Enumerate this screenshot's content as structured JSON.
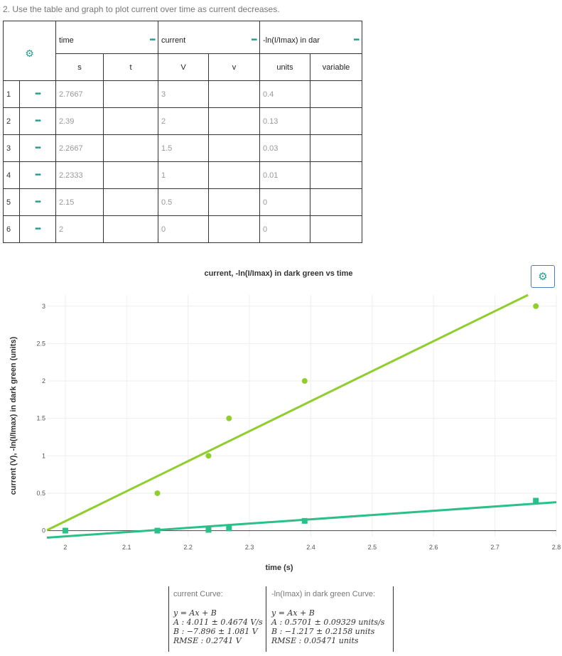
{
  "instructions": "2. Use the table and graph to plot current over time as current decreases.",
  "table": {
    "columns": [
      {
        "name": "time",
        "units": "s",
        "variable": "t"
      },
      {
        "name": "current",
        "units": "V",
        "variable": "v"
      },
      {
        "name": "-ln(I/Imax) in dar",
        "units": "units",
        "variable": "variable"
      }
    ],
    "rows": [
      {
        "num": "1",
        "time": "2.7667",
        "current": "3",
        "ln": "0.4"
      },
      {
        "num": "2",
        "time": "2.39",
        "current": "2",
        "ln": "0.13"
      },
      {
        "num": "3",
        "time": "2.2667",
        "current": "1.5",
        "ln": "0.03"
      },
      {
        "num": "4",
        "time": "2.2333",
        "current": "1",
        "ln": "0.01"
      },
      {
        "num": "5",
        "time": "2.15",
        "current": "0.5",
        "ln": "0"
      },
      {
        "num": "6",
        "time": "2",
        "current": "0",
        "ln": "0"
      }
    ],
    "header_dots": "•••",
    "row_dots": "•••"
  },
  "chart_data": {
    "type": "scatter",
    "title": "current, -ln(I/Imax) in dark green vs time",
    "xlabel": "time (s)",
    "ylabel": "current (V), -ln(I/Imax) in dark green (units)",
    "xlim": [
      1.97,
      2.8
    ],
    "ylim": [
      -0.08,
      3.15
    ],
    "xticks": [
      "2",
      "2.1",
      "2.2",
      "2.3",
      "2.4",
      "2.5",
      "2.6",
      "2.7",
      "2.8"
    ],
    "yticks": [
      "0",
      "0.5",
      "1",
      "1.5",
      "2",
      "2.5",
      "3"
    ],
    "grid": true,
    "series": [
      {
        "color": "#8fce2c",
        "marker": "circle",
        "x": [
          2.7667,
          2.39,
          2.2667,
          2.2333,
          2.15,
          2.0
        ],
        "y": [
          3,
          2,
          1.5,
          1,
          0.5,
          0
        ],
        "fit": {
          "A": 4.011,
          "B": -7.896
        }
      },
      {
        "color": "#2bbf8a",
        "marker": "square",
        "x": [
          2.7667,
          2.39,
          2.2667,
          2.2333,
          2.15,
          2.0
        ],
        "y": [
          0.4,
          0.13,
          0.03,
          0.01,
          0,
          0
        ],
        "fit": {
          "A": 0.5701,
          "B": -1.217
        }
      }
    ]
  },
  "fits": {
    "left": {
      "title": "current Curve:",
      "eq": "y = Ax + B",
      "a": "A : 4.011 ± 0.4674 V/s",
      "b": "B : −7.896 ± 1.081 V",
      "rmse": "RMSE : 0.2741 V"
    },
    "right": {
      "title": "-ln(Imax) in dark green Curve:",
      "eq": "y = Ax + B",
      "a": "A : 0.5701 ± 0.09329 units/s",
      "b": "B : −1.217 ± 0.2158 units",
      "rmse": "RMSE : 0.05471 units"
    }
  },
  "icons": {
    "settings": "gear-icon"
  },
  "colors": {
    "accent": "#2a9d8f",
    "light_green": "#8fce2c",
    "dark_green": "#2bbf8a"
  }
}
